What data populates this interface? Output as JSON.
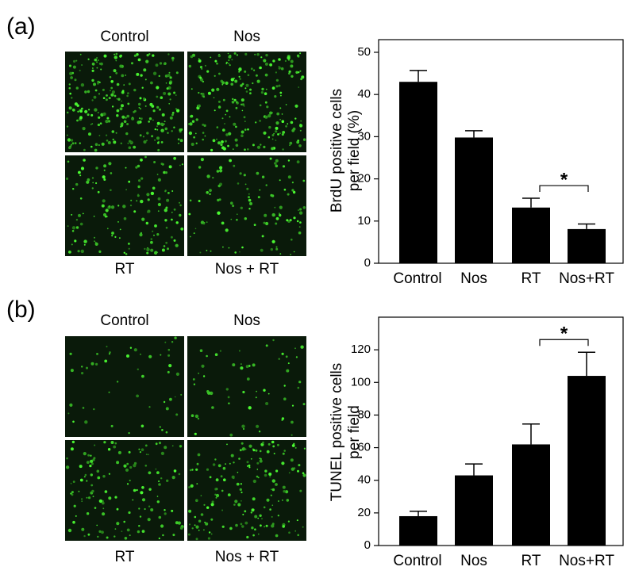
{
  "panels": [
    {
      "label": "(a)",
      "images": [
        "Control",
        "Nos",
        "RT",
        "Nos + RT"
      ]
    },
    {
      "label": "(b)",
      "images": [
        "Control",
        "Nos",
        "RT",
        "Nos + RT"
      ]
    }
  ],
  "chart_data": [
    {
      "type": "bar",
      "y_label": [
        "BrdU positive cells",
        "per field  (%)"
      ],
      "categories": [
        "Control",
        "Nos",
        "RT",
        "Nos+RT"
      ],
      "values": [
        43,
        29.8,
        13.2,
        8.1
      ],
      "errors": [
        2.7,
        1.6,
        2.2,
        1.2
      ],
      "color": "#000000",
      "ylim": [
        0,
        53
      ],
      "yticks": [
        0,
        10,
        20,
        30,
        40,
        50
      ],
      "annotation": "*"
    },
    {
      "type": "bar",
      "y_label": [
        "TUNEL positive cells",
        "per field"
      ],
      "categories": [
        "Control",
        "Nos",
        "RT",
        "Nos+RT"
      ],
      "values": [
        18,
        43,
        62,
        104
      ],
      "errors": [
        3,
        7,
        12.5,
        14.5
      ],
      "color": "#000000",
      "ylim": [
        0,
        140
      ],
      "yticks": [
        0,
        20,
        40,
        60,
        80,
        100,
        120
      ],
      "annotation": "*"
    }
  ]
}
